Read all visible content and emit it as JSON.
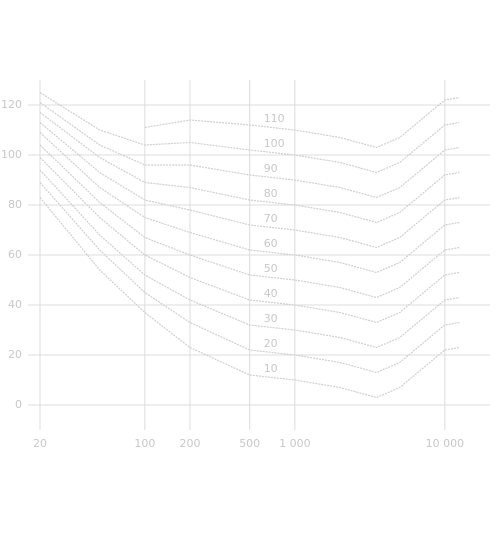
{
  "chart_data": {
    "type": "line",
    "log_x": true,
    "grid": true,
    "color": "#cfcfcf",
    "x": [
      20,
      50,
      100,
      200,
      500,
      1000,
      2000,
      3500,
      5000,
      10000,
      12500
    ],
    "xlim": [
      20,
      20000
    ],
    "xticks": [
      20,
      100,
      200,
      500,
      {
        "value": 1000,
        "label": "1 000"
      },
      {
        "value": 10000,
        "label": "10 000"
      }
    ],
    "ylim": [
      -10,
      130
    ],
    "yticks": [
      0,
      20,
      40,
      60,
      80,
      100,
      120
    ],
    "series": [
      {
        "name": "10",
        "values": [
          83,
          54,
          37,
          23,
          12,
          10,
          7,
          3,
          7,
          22,
          23
        ]
      },
      {
        "name": "20",
        "values": [
          89,
          62,
          45,
          33,
          22,
          20,
          17,
          13,
          17,
          32,
          33
        ]
      },
      {
        "name": "30",
        "values": [
          94,
          68,
          52,
          42,
          32,
          30,
          27,
          23,
          27,
          42,
          43
        ]
      },
      {
        "name": "40",
        "values": [
          99,
          75,
          60,
          51,
          42,
          40,
          37,
          33,
          37,
          52,
          53
        ]
      },
      {
        "name": "50",
        "values": [
          104,
          81,
          67,
          60,
          52,
          50,
          47,
          43,
          47,
          62,
          63
        ]
      },
      {
        "name": "60",
        "values": [
          109,
          87,
          75,
          69,
          62,
          60,
          57,
          53,
          57,
          72,
          73
        ]
      },
      {
        "name": "70",
        "values": [
          113,
          93,
          82,
          78,
          72,
          70,
          67,
          63,
          67,
          82,
          83
        ]
      },
      {
        "name": "80",
        "values": [
          117,
          99,
          89,
          87,
          82,
          80,
          77,
          73,
          77,
          92,
          93
        ]
      },
      {
        "name": "90",
        "values": [
          121,
          104,
          96,
          96,
          92,
          90,
          87,
          83,
          87,
          102,
          103
        ]
      },
      {
        "name": "100",
        "values": [
          125,
          110,
          104,
          105,
          102,
          100,
          97,
          93,
          97,
          112,
          113
        ]
      },
      {
        "name": "110",
        "values": [
          null,
          null,
          111,
          114,
          112,
          110,
          107,
          103,
          107,
          122,
          123
        ]
      }
    ]
  }
}
